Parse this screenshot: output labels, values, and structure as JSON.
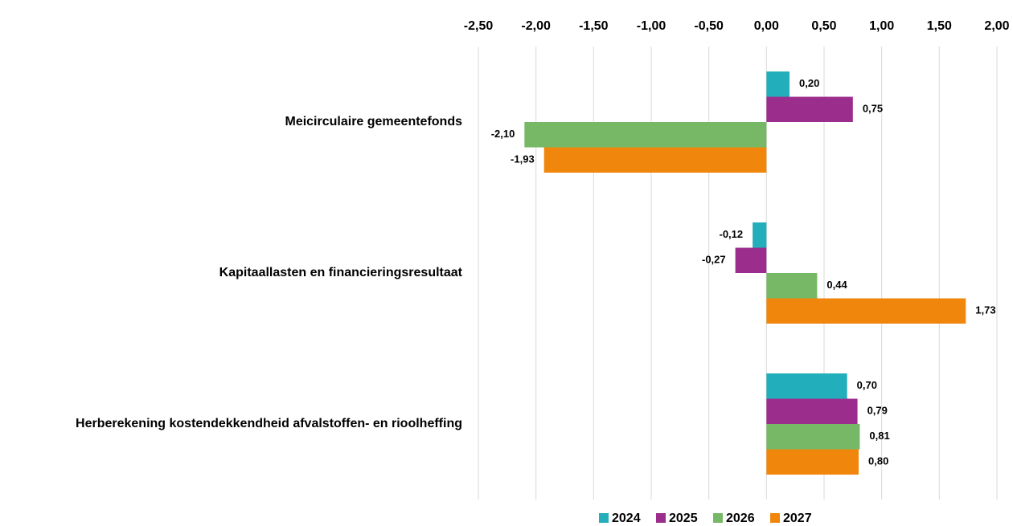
{
  "chart_data": {
    "type": "bar",
    "orientation": "horizontal",
    "categories": [
      "Meicirculaire gemeentefonds",
      "Kapitaallasten en financieringsresultaat",
      "Herberekening kostendekkendheid afvalstoffen- en rioolheffing"
    ],
    "series": [
      {
        "name": "2024",
        "color": "#23aebb",
        "values": [
          0.2,
          -0.12,
          0.7
        ],
        "value_labels": [
          "0,20",
          "-0,12",
          "0,70"
        ]
      },
      {
        "name": "2025",
        "color": "#9b2d8c",
        "values": [
          0.75,
          -0.27,
          0.79
        ],
        "value_labels": [
          "0,75",
          "-0,27",
          "0,79"
        ]
      },
      {
        "name": "2026",
        "color": "#77b867",
        "values": [
          -2.1,
          0.44,
          0.81
        ],
        "value_labels": [
          "-2,10",
          "0,44",
          "0,81"
        ]
      },
      {
        "name": "2027",
        "color": "#f0870c",
        "values": [
          -1.93,
          1.73,
          0.8
        ],
        "value_labels": [
          "-1,93",
          "1,73",
          "0,80"
        ]
      }
    ],
    "xlim": [
      -2.5,
      2.0
    ],
    "xticks": [
      {
        "value": -2.5,
        "label": "-2,50"
      },
      {
        "value": -2.0,
        "label": "-2,00"
      },
      {
        "value": -1.5,
        "label": "-1,50"
      },
      {
        "value": -1.0,
        "label": "-1,00"
      },
      {
        "value": -0.5,
        "label": "-0,50"
      },
      {
        "value": 0,
        "label": "0,00"
      },
      {
        "value": 0.5,
        "label": "0,50"
      },
      {
        "value": 1.0,
        "label": "1,00"
      },
      {
        "value": 1.5,
        "label": "1,50"
      },
      {
        "value": 2.0,
        "label": "2,00"
      }
    ],
    "grid": true,
    "legend": "bottom"
  }
}
